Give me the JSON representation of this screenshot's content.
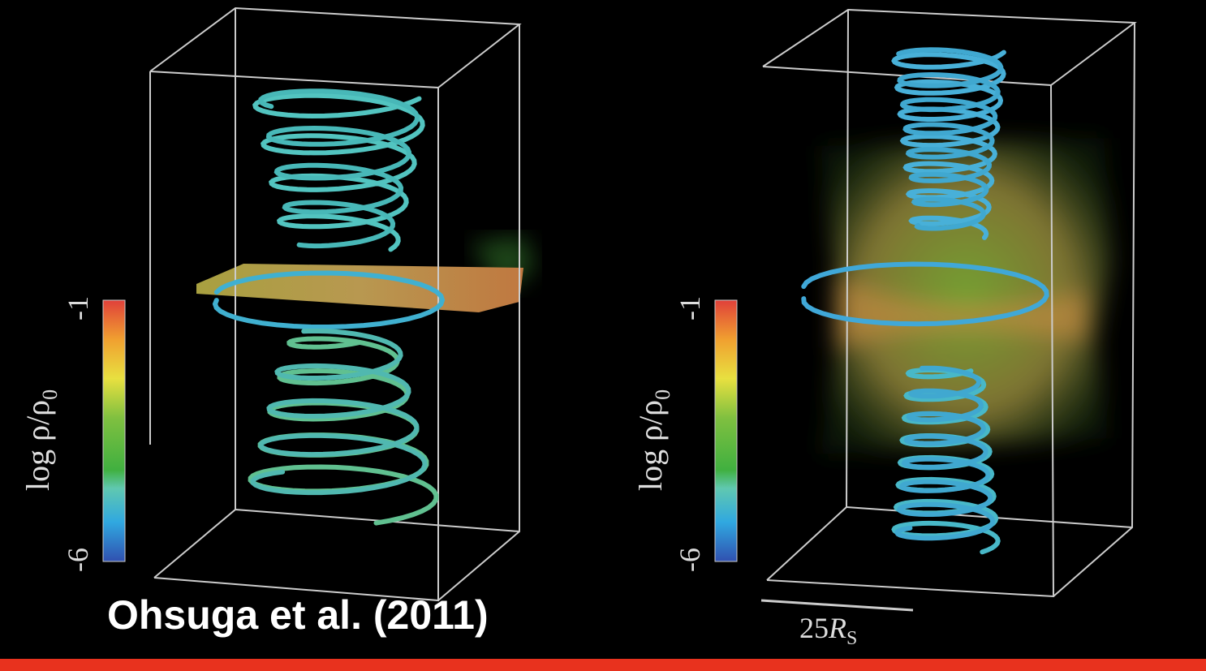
{
  "panels": [
    {
      "colorbar": {
        "label": "log ρ/ρ",
        "label_subscript": "0",
        "max_label": "-1",
        "min_label": "-6"
      }
    },
    {
      "colorbar": {
        "label": "log ρ/ρ",
        "label_subscript": "0",
        "max_label": "-1",
        "min_label": "-6"
      },
      "scale_bar": {
        "number": "25",
        "symbol": "R",
        "subscript": "S"
      }
    }
  ],
  "caption": "Ohsuga et al. (2011)"
}
